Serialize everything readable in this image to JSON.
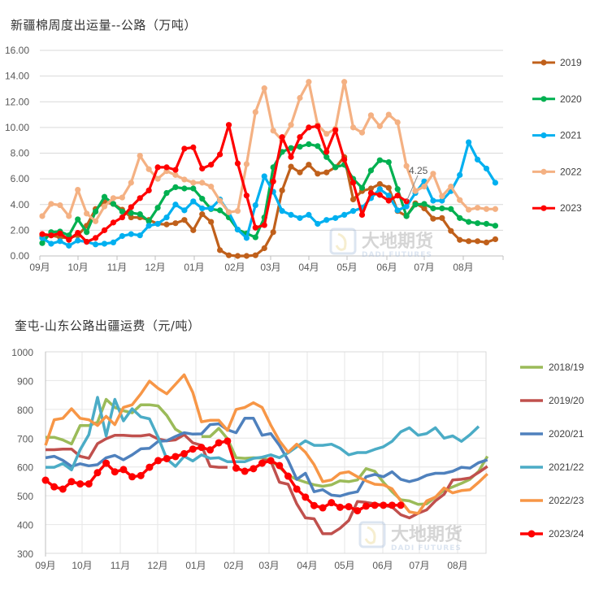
{
  "chart_data": [
    {
      "type": "line",
      "title": "新疆棉周度出运量--公路（万吨）",
      "xlabel": "",
      "ylabel": "",
      "x_tick_labels": [
        "09月",
        "10月",
        "11月",
        "12月",
        "01月",
        "02月",
        "03月",
        "04月",
        "05月",
        "06月",
        "07月",
        "08月"
      ],
      "ylim": [
        0,
        16
      ],
      "y_ticks": [
        "0.00",
        "2.00",
        "4.00",
        "6.00",
        "8.00",
        "10.00",
        "12.00",
        "14.00",
        "16.00"
      ],
      "grid": "horizontal",
      "legend": "right",
      "markers": true,
      "annotations": [
        {
          "series": "2023",
          "text": "4.25"
        }
      ],
      "series": [
        {
          "name": "2019",
          "color": "#C0601B",
          "values": [
            1.55,
            1.6,
            1.45,
            1.4,
            1.6,
            2.35,
            3.65,
            4.2,
            4.05,
            3.6,
            3.0,
            3.0,
            2.8,
            2.5,
            2.45,
            2.55,
            2.8,
            2.0,
            3.25,
            2.65,
            0.45,
            0.05,
            0,
            0,
            0.05,
            0.6,
            1.85,
            5.1,
            6.95,
            6.5,
            7.1,
            6.4,
            6.5,
            6.9,
            7.7,
            4.4,
            5.05,
            5.25,
            5.6,
            5.3,
            3.5,
            3.1,
            4.1,
            3.7,
            2.9,
            2.95,
            1.95,
            1.25,
            1.15,
            1.15,
            1.05,
            1.3
          ]
        },
        {
          "name": "2020",
          "color": "#00B050",
          "values": [
            1.0,
            1.85,
            1.9,
            1.6,
            2.85,
            1.85,
            3.45,
            4.6,
            4.05,
            3.45,
            3.35,
            3.25,
            2.7,
            3.75,
            4.9,
            5.35,
            5.25,
            5.25,
            4.45,
            3.65,
            3.55,
            3.0,
            2.05,
            1.75,
            1.45,
            3.0,
            6.9,
            8.1,
            8.4,
            8.5,
            8.7,
            8.55,
            7.7,
            6.9,
            7.1,
            6.0,
            5.3,
            6.65,
            7.45,
            7.3,
            5.2,
            3.1,
            4.0,
            4.05,
            3.7,
            3.7,
            3.65,
            2.95,
            2.65,
            2.55,
            2.5,
            2.35
          ]
        },
        {
          "name": "2021",
          "color": "#00B0F0",
          "values": [
            1.4,
            0.95,
            1.15,
            0.8,
            1.2,
            1.1,
            0.9,
            0.95,
            1.05,
            1.55,
            1.7,
            1.6,
            2.35,
            2.5,
            3.0,
            4.0,
            3.55,
            4.25,
            3.7,
            3.7,
            4.4,
            3.4,
            2.05,
            1.4,
            3.95,
            6.2,
            5.0,
            3.5,
            3.2,
            2.95,
            3.2,
            2.5,
            2.8,
            2.95,
            3.2,
            3.5,
            3.75,
            4.5,
            5.2,
            4.7,
            3.55,
            3.85,
            4.9,
            5.8,
            4.3,
            4.3,
            5.05,
            6.3,
            8.85,
            7.5,
            6.8,
            5.7
          ]
        },
        {
          "name": "2022",
          "color": "#F4B183",
          "values": [
            3.1,
            4.05,
            3.95,
            3.1,
            5.15,
            3.3,
            2.7,
            3.85,
            4.5,
            4.55,
            5.7,
            7.8,
            6.75,
            6.0,
            6.6,
            6.3,
            5.95,
            5.7,
            5.7,
            5.4,
            4.3,
            3.4,
            3.5,
            7.15,
            11.2,
            13.05,
            9.75,
            9.0,
            10.2,
            12.3,
            13.55,
            10.2,
            9.5,
            9.9,
            13.55,
            10.0,
            9.6,
            10.95,
            10.1,
            11.0,
            10.4,
            7.0,
            5.05,
            5.4,
            6.4,
            4.65,
            5.4,
            4.35,
            3.6,
            3.75,
            3.65,
            3.65
          ]
        },
        {
          "name": "2023",
          "color": "#FF0000",
          "values": [
            1.7,
            1.6,
            1.75,
            1.25,
            1.8,
            1.1,
            1.4,
            2.0,
            2.6,
            3.0,
            3.8,
            4.5,
            5.1,
            6.9,
            6.9,
            6.7,
            8.35,
            8.45,
            6.8,
            7.1,
            7.9,
            10.2,
            7.2,
            4.7,
            2.2,
            2.4,
            5.8,
            9.25,
            7.7,
            9.25,
            10.0,
            10.1,
            8.1,
            9.8,
            7.5,
            5.7,
            3.2,
            4.9,
            4.75,
            4.3,
            4.7,
            4.25
          ]
        }
      ]
    },
    {
      "type": "line",
      "title": "奎屯-山东公路出疆运费（元/吨）",
      "xlabel": "",
      "ylabel": "",
      "x_tick_labels": [
        "09月",
        "10月",
        "11月",
        "12月",
        "01月",
        "02月",
        "03月",
        "04月",
        "05月",
        "06月",
        "07月",
        "08月"
      ],
      "ylim": [
        300,
        1000
      ],
      "y_ticks": [
        "300",
        "400",
        "500",
        "600",
        "700",
        "800",
        "900",
        "1000"
      ],
      "grid": "both",
      "legend": "right",
      "series": [
        {
          "name": "2018/19",
          "color": "#9BBB59",
          "values": [
            703,
            703,
            694,
            680,
            744,
            744,
            755,
            835,
            807,
            795,
            788,
            816,
            816,
            812,
            779,
            731,
            713,
            null,
            706,
            706,
            734,
            698,
            632,
            630,
            632,
            631,
            623,
            599,
            571,
            557,
            547,
            538,
            533,
            538,
            552,
            549,
            555,
            594,
            585,
            547,
            514,
            486,
            482,
            470,
            472,
            495,
            519,
            531,
            543,
            557,
            585,
            637
          ]
        },
        {
          "name": "2019/20",
          "color": "#C0504D",
          "values": [
            660,
            660,
            662,
            662,
            637,
            630,
            681,
            698,
            710,
            710,
            708,
            708,
            712,
            697,
            691,
            694,
            712,
            684,
            675,
            602,
            599,
            599,
            null,
            null,
            null,
            625,
            620,
            547,
            540,
            472,
            423,
            420,
            368,
            368,
            387,
            414,
            480,
            477,
            472,
            467,
            461,
            434,
            423,
            439,
            451,
            482,
            505,
            555,
            557,
            562,
            581,
            602
          ]
        },
        {
          "name": "2020/21",
          "color": "#4F81BD",
          "values": [
            632,
            637,
            623,
            602,
            611,
            604,
            608,
            632,
            640,
            625,
            642,
            663,
            665,
            689,
            691,
            706,
            719,
            714,
            715,
            747,
            750,
            729,
            719,
            769,
            769,
            710,
            716,
            675,
            623,
            557,
            578,
            514,
            521,
            502,
            499,
            508,
            514,
            566,
            574,
            566,
            583,
            557,
            549,
            557,
            571,
            578,
            578,
            585,
            599,
            596,
            615,
            625
          ]
        },
        {
          "name": "2021/22",
          "color": "#4BACC6",
          "values": [
            599,
            599,
            612,
            590,
            660,
            712,
            842,
            708,
            835,
            760,
            802,
            774,
            767,
            703,
            628,
            602,
            637,
            621,
            642,
            630,
            632,
            618,
            618,
            618,
            630,
            634,
            642,
            632,
            649,
            670,
            691,
            675,
            675,
            679,
            665,
            642,
            650,
            650,
            661,
            670,
            689,
            722,
            736,
            710,
            716,
            736,
            700,
            708,
            689,
            712,
            741,
            null
          ]
        },
        {
          "name": "2022/23",
          "color": "#F79646",
          "values": [
            675,
            764,
            769,
            802,
            769,
            764,
            744,
            776,
            747,
            807,
            816,
            854,
            898,
            873,
            854,
            887,
            920,
            859,
            757,
            762,
            762,
            727,
            800,
            807,
            823,
            807,
            745,
            691,
            651,
            679,
            651,
            608,
            549,
            555,
            578,
            583,
            566,
            552,
            540,
            538,
            524,
            482,
            444,
            439,
            482,
            495,
            527,
            510,
            518,
            521,
            547,
            576
          ]
        },
        {
          "name": "2023/24",
          "color": "#FF0000",
          "values": [
            554,
            531,
            523,
            549,
            541,
            541,
            580,
            613,
            583,
            591,
            566,
            570,
            599,
            622,
            629,
            636,
            646,
            662,
            668,
            659,
            684,
            690,
            596,
            585,
            594,
            613,
            622,
            605,
            568,
            523,
            495,
            466,
            458,
            476,
            460,
            462,
            448,
            464,
            467,
            467,
            467,
            467
          ]
        }
      ]
    }
  ],
  "watermark": {
    "cn": "大地期货",
    "en": "DADI FUTURES"
  }
}
